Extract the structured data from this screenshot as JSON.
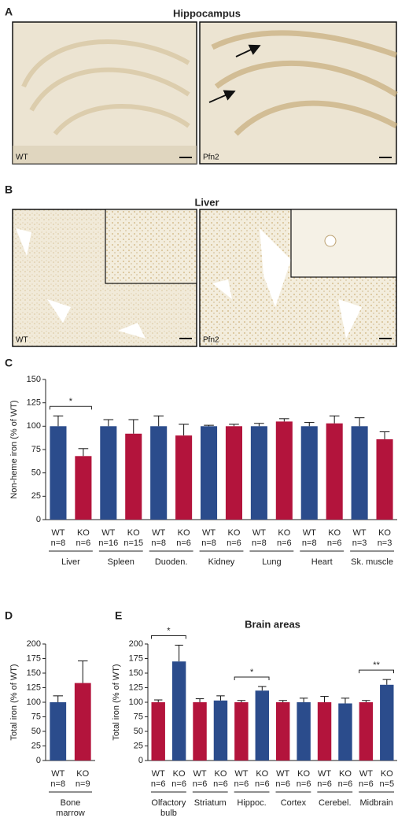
{
  "figure": {
    "panels": [
      {
        "letter": "A",
        "title": "Hippocampus",
        "left_label": "WT",
        "right_label": "Pfn2"
      },
      {
        "letter": "B",
        "title": "Liver",
        "left_label": "WT",
        "right_label": "Pfn2"
      }
    ]
  },
  "chart_data": [
    {
      "type": "bar",
      "panel": "C",
      "ylabel": "Non-heme iron (% of WT)",
      "groups": [
        [
          "Liver"
        ],
        [
          "Spleen"
        ],
        [
          "Duoden."
        ],
        [
          "Kidney"
        ],
        [
          "Lung"
        ],
        [
          "Heart"
        ],
        [
          "Sk. muscle"
        ]
      ],
      "series": [
        {
          "name": "WT",
          "color": "#2b4c8c",
          "values": [
            100,
            100,
            100,
            100,
            100,
            100,
            100
          ],
          "errors": [
            11,
            7,
            11,
            1,
            3,
            4,
            9
          ],
          "n_labels": [
            "n=8",
            "n=16",
            "n=8",
            "n=8",
            "n=8",
            "n=8",
            "n=3"
          ]
        },
        {
          "name": "KO",
          "color": "#b3143c",
          "values": [
            68,
            92,
            90,
            100,
            105,
            103,
            86
          ],
          "errors": [
            8,
            15,
            12,
            2,
            3,
            8,
            8
          ],
          "n_labels": [
            "n=6",
            "n=15",
            "n=6",
            "n=6",
            "n=6",
            "n=6",
            "n=3"
          ]
        }
      ],
      "significance": [
        "*",
        null,
        null,
        null,
        null,
        null,
        null
      ],
      "ylim": [
        0,
        150
      ],
      "yticks": [
        0,
        25,
        50,
        75,
        100,
        125,
        150
      ]
    },
    {
      "type": "bar",
      "panel": "D",
      "ylabel": "Total iron (% of WT)",
      "groups": [
        [
          "Bone",
          "marrow"
        ]
      ],
      "series": [
        {
          "name": "WT",
          "color": "#2b4c8c",
          "values": [
            100
          ],
          "errors": [
            11
          ],
          "n_labels": [
            "n=8"
          ]
        },
        {
          "name": "KO",
          "color": "#b3143c",
          "values": [
            133
          ],
          "errors": [
            38
          ],
          "n_labels": [
            "n=9"
          ]
        }
      ],
      "significance": [
        null
      ],
      "ylim": [
        0,
        200
      ],
      "yticks": [
        0,
        25,
        50,
        75,
        100,
        125,
        150,
        175,
        200
      ]
    },
    {
      "type": "bar",
      "panel": "E",
      "title": "Brain areas",
      "ylabel": "Total iron (% of WT)",
      "groups": [
        [
          "Olfactory",
          "bulb"
        ],
        [
          "Striatum"
        ],
        [
          "Hippoc."
        ],
        [
          "Cortex"
        ],
        [
          "Cerebel."
        ],
        [
          "Midbrain"
        ]
      ],
      "series": [
        {
          "name": "WT",
          "color": "#b3143c",
          "values": [
            100,
            100,
            100,
            100,
            100,
            100
          ],
          "errors": [
            4,
            6,
            3,
            3,
            10,
            3
          ],
          "n_labels": [
            "n=6",
            "n=6",
            "n=6",
            "n=6",
            "n=6",
            "n=6"
          ]
        },
        {
          "name": "KO",
          "color": "#2b4c8c",
          "values": [
            170,
            103,
            120,
            100,
            98,
            130
          ],
          "errors": [
            28,
            8,
            7,
            7,
            9,
            9
          ],
          "n_labels": [
            "n=6",
            "n=6",
            "n=6",
            "n=6",
            "n=6",
            "n=5"
          ]
        }
      ],
      "significance": [
        "*",
        null,
        "*",
        null,
        null,
        "**"
      ],
      "ylim": [
        0,
        200
      ],
      "yticks": [
        0,
        25,
        50,
        75,
        100,
        125,
        150,
        175,
        200
      ]
    }
  ]
}
